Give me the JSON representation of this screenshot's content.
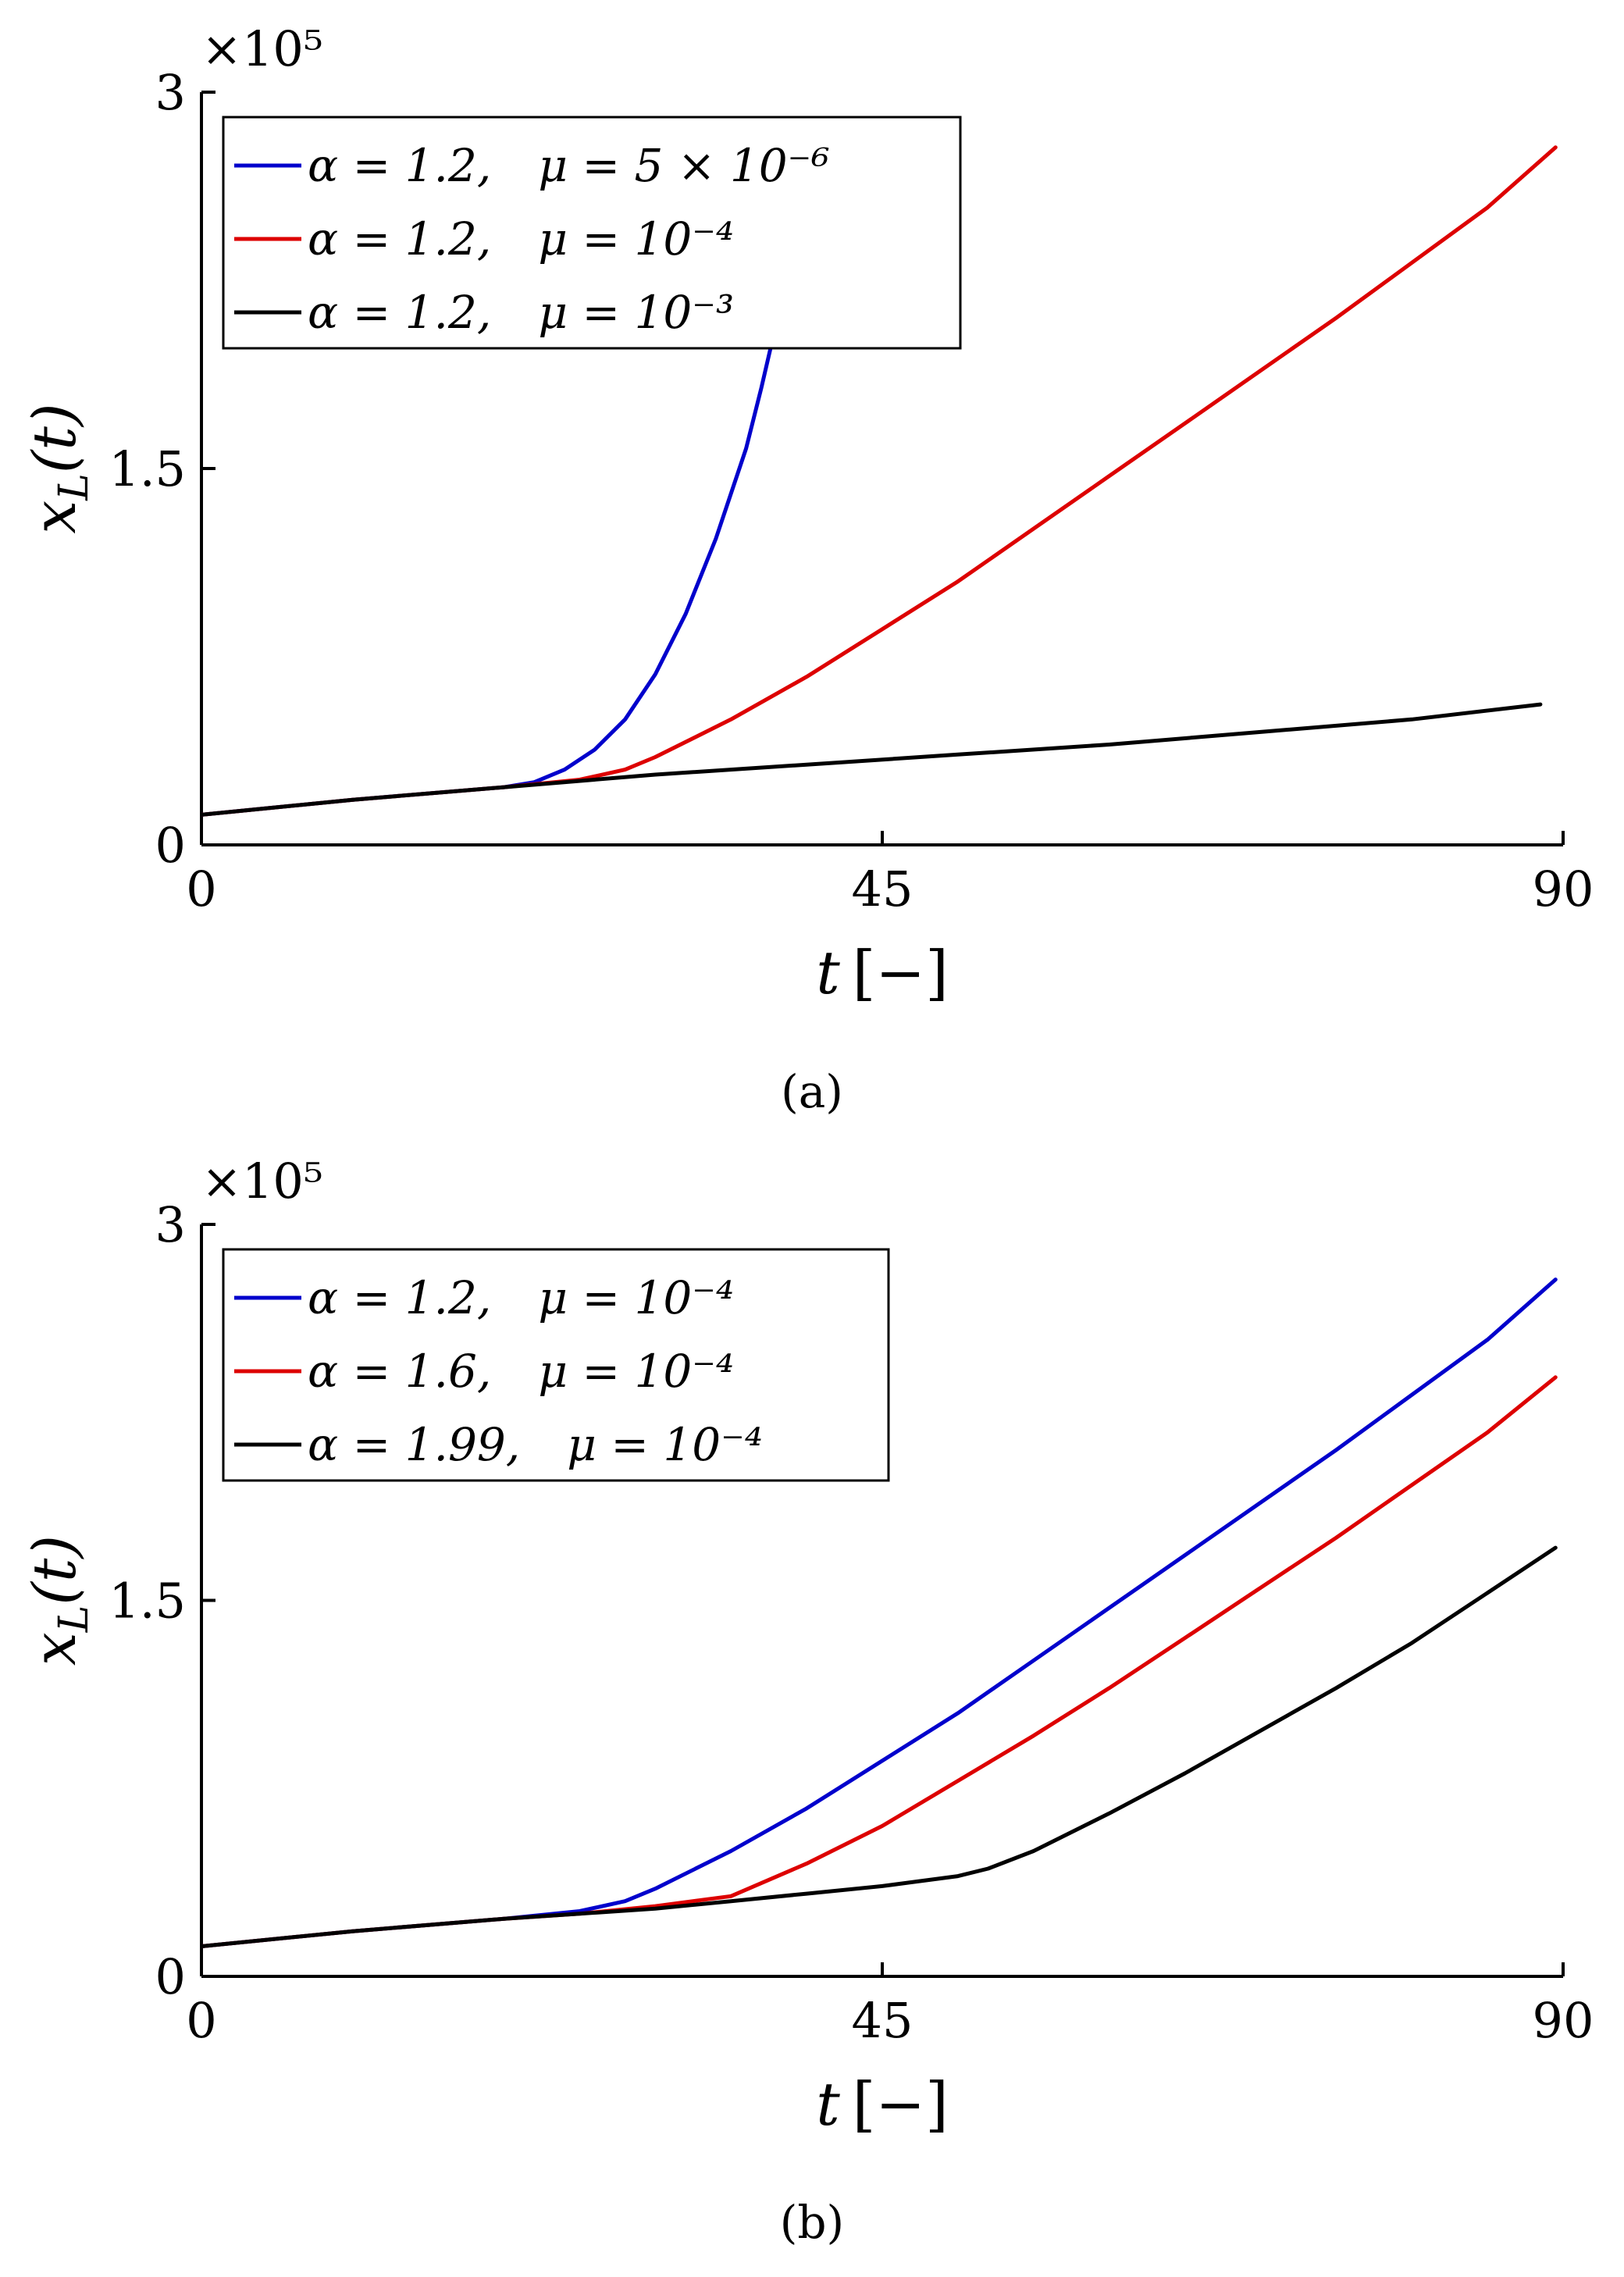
{
  "chart_data": [
    {
      "type": "line",
      "panel_label": "(a)",
      "scale_factor": "×10⁵",
      "x_label_symbol": "t",
      "x_label_unit": "[−]",
      "y_label_main": "x",
      "y_label_sub": "L",
      "y_label_arg": "(t)",
      "xlim": [
        0,
        90
      ],
      "ylim": [
        0,
        3
      ],
      "x_ticks": [
        "0",
        "45",
        "90"
      ],
      "y_ticks": [
        "0",
        "1.5",
        "3"
      ],
      "grid": false,
      "legend_position": "top-left",
      "series": [
        {
          "legend_alpha": "α = 1.2,",
          "legend_mu": "μ = 5 × 10⁻⁶",
          "color": "#0000cc",
          "x": [
            0,
            5,
            10,
            15,
            20,
            22,
            24,
            26,
            28,
            30,
            32,
            34,
            36,
            37,
            38,
            38.5
          ],
          "y": [
            0.12,
            0.15,
            0.18,
            0.205,
            0.23,
            0.25,
            0.3,
            0.38,
            0.5,
            0.68,
            0.92,
            1.22,
            1.58,
            1.82,
            2.08,
            2.22
          ]
        },
        {
          "legend_alpha": "α = 1.2,",
          "legend_mu": "μ = 10⁻⁴",
          "color": "#dd0000",
          "x": [
            0,
            10,
            20,
            25,
            28,
            30,
            35,
            40,
            45,
            50,
            55,
            60,
            65,
            70,
            75,
            80,
            85,
            89.5
          ],
          "y": [
            0.12,
            0.18,
            0.23,
            0.26,
            0.3,
            0.35,
            0.5,
            0.67,
            0.86,
            1.05,
            1.26,
            1.47,
            1.68,
            1.89,
            2.1,
            2.32,
            2.54,
            2.78
          ]
        },
        {
          "legend_alpha": "α = 1.2,",
          "legend_mu": "μ = 10⁻³",
          "color": "#000000",
          "x": [
            0,
            10,
            20,
            30,
            40,
            50,
            60,
            70,
            80,
            88.5
          ],
          "y": [
            0.12,
            0.18,
            0.23,
            0.28,
            0.32,
            0.36,
            0.4,
            0.45,
            0.5,
            0.56
          ]
        }
      ]
    },
    {
      "type": "line",
      "panel_label": "(b)",
      "scale_factor": "×10⁵",
      "x_label_symbol": "t",
      "x_label_unit": "[−]",
      "y_label_main": "x",
      "y_label_sub": "L",
      "y_label_arg": "(t)",
      "xlim": [
        0,
        90
      ],
      "ylim": [
        0,
        3
      ],
      "x_ticks": [
        "0",
        "45",
        "90"
      ],
      "y_ticks": [
        "0",
        "1.5",
        "3"
      ],
      "grid": false,
      "legend_position": "top-left",
      "series": [
        {
          "legend_alpha": "α = 1.2,",
          "legend_mu": "μ = 10⁻⁴",
          "color": "#0000cc",
          "x": [
            0,
            10,
            20,
            25,
            28,
            30,
            35,
            40,
            45,
            50,
            55,
            60,
            65,
            70,
            75,
            80,
            85,
            89.5
          ],
          "y": [
            0.12,
            0.18,
            0.23,
            0.26,
            0.3,
            0.35,
            0.5,
            0.67,
            0.86,
            1.05,
            1.26,
            1.47,
            1.68,
            1.89,
            2.1,
            2.32,
            2.54,
            2.78
          ]
        },
        {
          "legend_alpha": "α = 1.6,",
          "legend_mu": "μ = 10⁻⁴",
          "color": "#dd0000",
          "x": [
            0,
            10,
            20,
            25,
            30,
            35,
            40,
            45,
            50,
            55,
            60,
            65,
            70,
            75,
            80,
            85,
            89.5
          ],
          "y": [
            0.12,
            0.18,
            0.23,
            0.25,
            0.28,
            0.32,
            0.45,
            0.6,
            0.78,
            0.96,
            1.15,
            1.35,
            1.55,
            1.75,
            1.96,
            2.17,
            2.39
          ]
        },
        {
          "legend_alpha": "α = 1.99,",
          "legend_mu": "μ = 10⁻⁴",
          "color": "#000000",
          "x": [
            0,
            10,
            20,
            30,
            35,
            40,
            45,
            50,
            52,
            55,
            60,
            65,
            70,
            75,
            80,
            85,
            89.5
          ],
          "y": [
            0.12,
            0.18,
            0.23,
            0.27,
            0.3,
            0.33,
            0.36,
            0.4,
            0.43,
            0.5,
            0.65,
            0.81,
            0.98,
            1.15,
            1.33,
            1.53,
            1.71
          ]
        }
      ]
    }
  ]
}
